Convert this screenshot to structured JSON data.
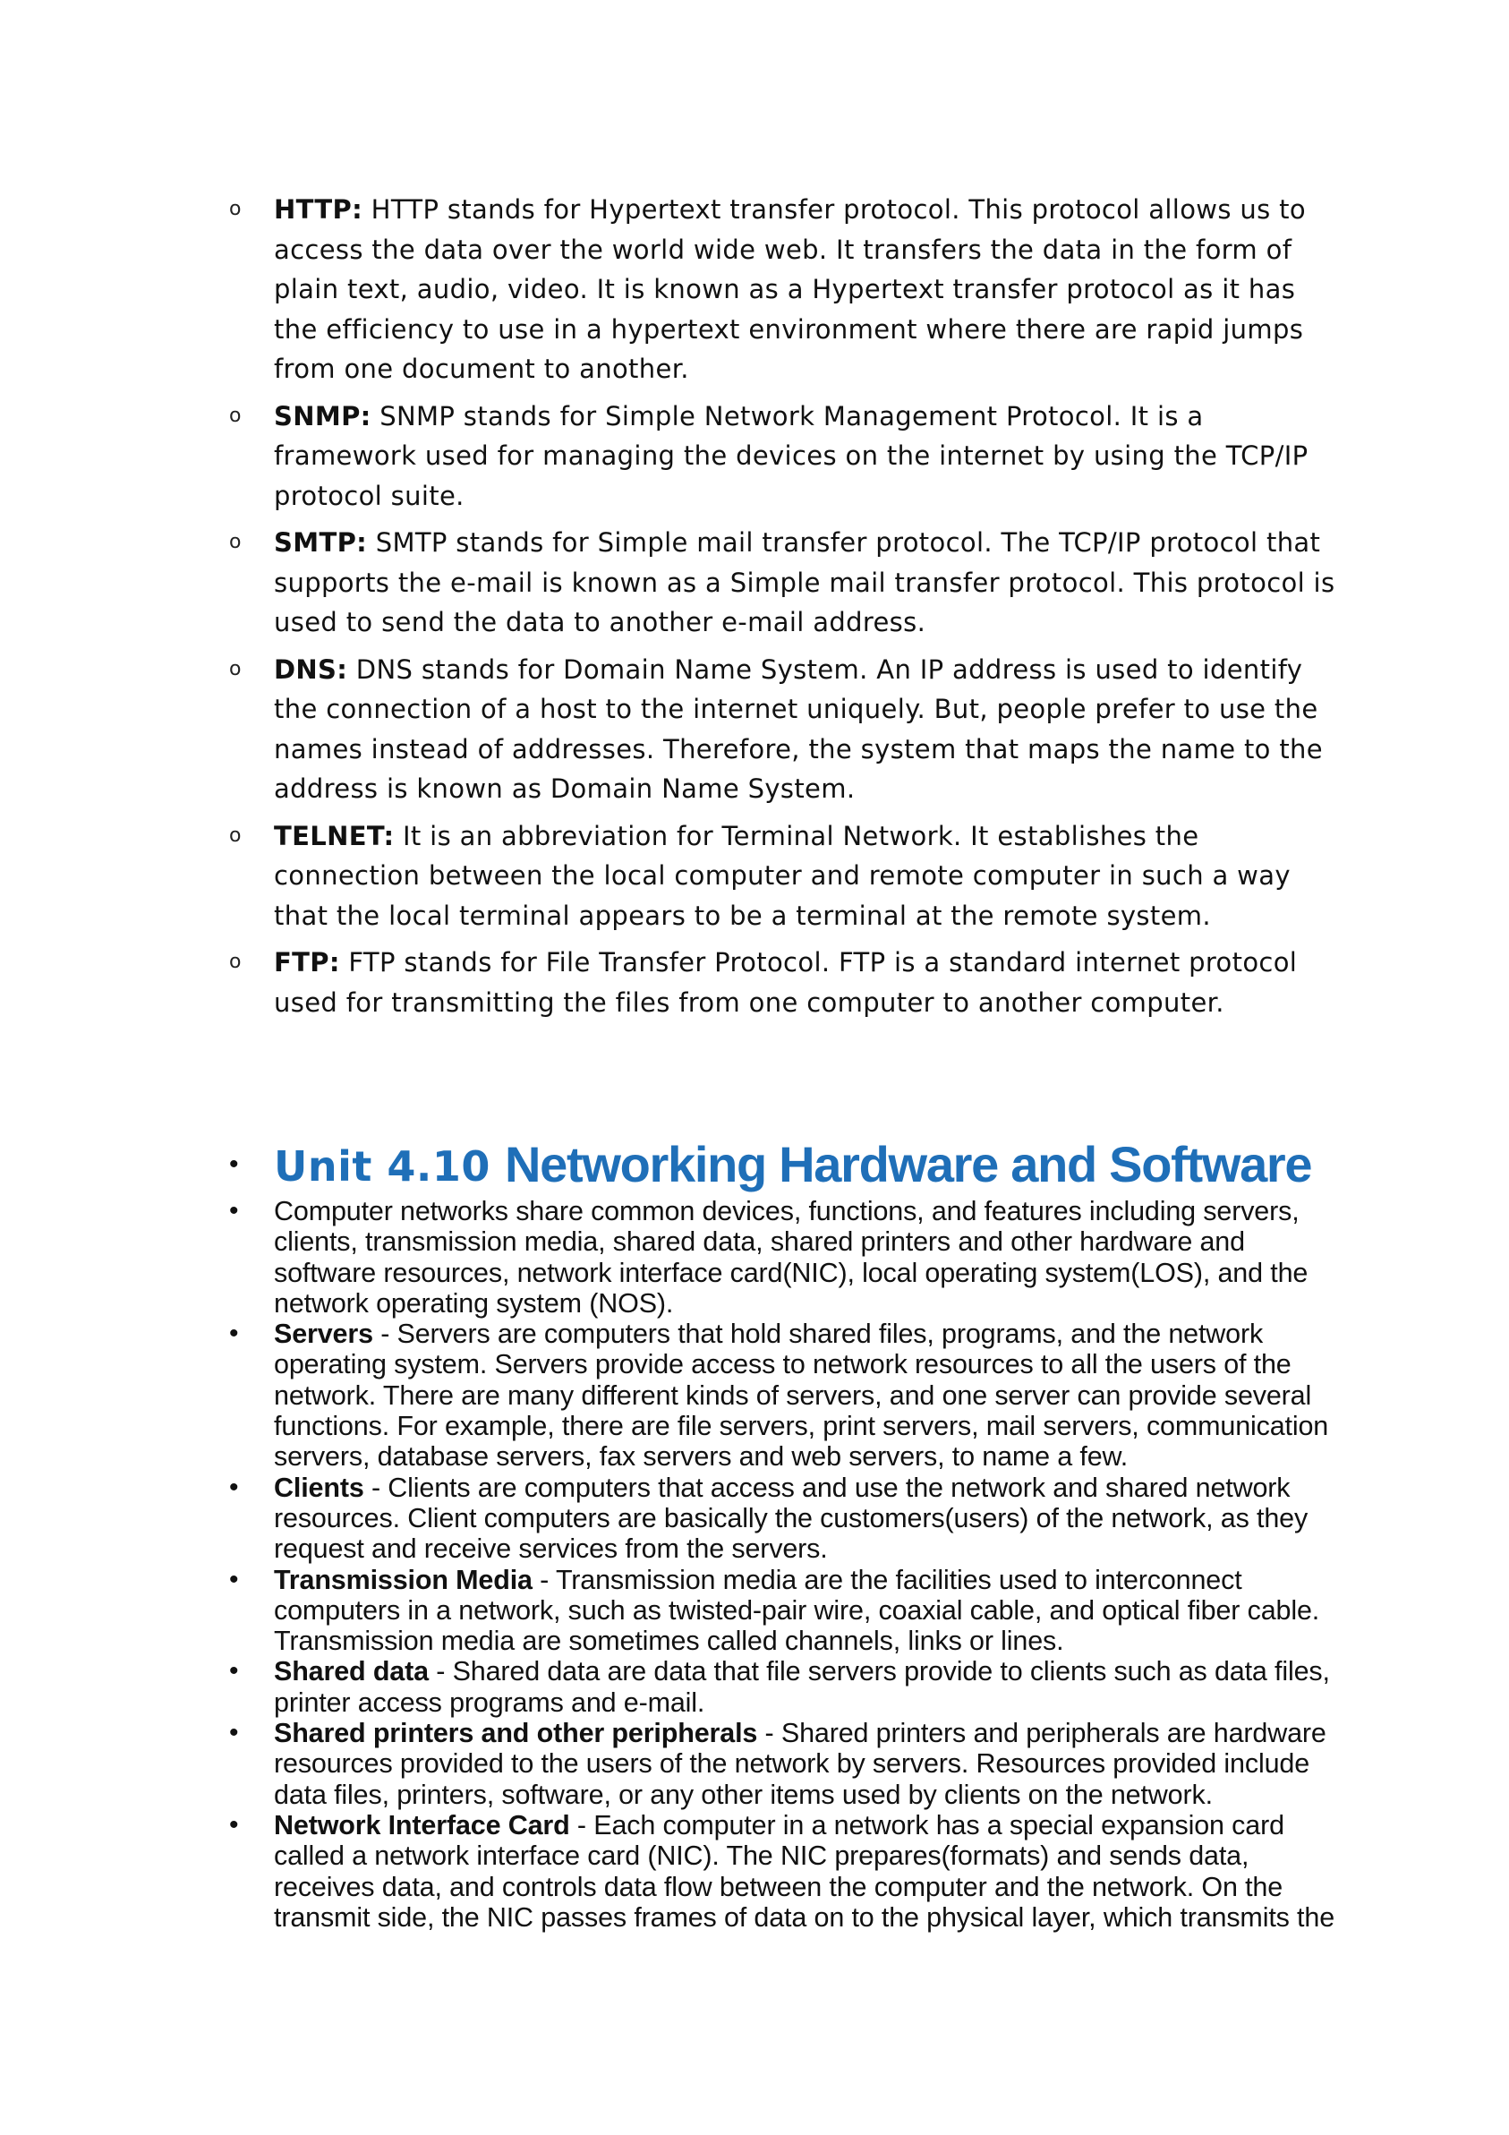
{
  "protocols": [
    {
      "bullet": "o",
      "term": "HTTP:",
      "text": " HTTP stands for Hypertext transfer protocol. This protocol allows us to access the data over the world wide web. It transfers the data in the form of plain text, audio, video. It is known as a Hypertext transfer protocol as it has the efficiency to use in a hypertext environment where there are rapid jumps from one document to another."
    },
    {
      "bullet": "o",
      "term": "SNMP:",
      "text": " SNMP stands for Simple Network Management Protocol. It is a framework used for managing the devices on the internet by using the TCP/IP protocol suite."
    },
    {
      "bullet": "o",
      "term": "SMTP:",
      "text": " SMTP stands for Simple mail transfer protocol. The TCP/IP protocol that supports the e-mail is known as a Simple mail transfer protocol. This protocol is used to send the data to another e-mail address."
    },
    {
      "bullet": "o",
      "term": "DNS:",
      "text": " DNS stands for Domain Name System. An IP address is used to identify the connection of a host to the internet uniquely. But, people prefer to use the names instead of addresses. Therefore, the system that maps the name to the address is known as Domain Name System."
    },
    {
      "bullet": "o",
      "term": "TELNET:",
      "text": " It is an abbreviation for Terminal Network. It establishes the connection between the local computer and remote computer in such a way that the local terminal appears to be a terminal at the remote system."
    },
    {
      "bullet": "o",
      "term": "FTP:",
      "text": " FTP stands for File Transfer Protocol. FTP is a standard internet protocol used for transmitting the files from one computer to another computer."
    }
  ],
  "unit_heading": {
    "bullet": "•",
    "unit_number": "Unit 4.10",
    "title": "Networking Hardware and Software"
  },
  "components": [
    {
      "bullet": "•",
      "term": "",
      "text": "Computer networks share common devices, functions, and features including servers, clients, transmission media, shared data, shared printers and other hardware and software resources, network interface card(NIC), local operating system(LOS), and the network operating system (NOS)."
    },
    {
      "bullet": "•",
      "term": "Servers",
      "text": " - Servers are computers that hold shared files, programs, and the network operating system. Servers provide access to network resources to all the users of the network. There are many different kinds of servers, and one server can provide several functions. For example, there are file servers, print servers, mail servers, communication servers, database servers, fax servers and web servers, to name a few."
    },
    {
      "bullet": "•",
      "term": "Clients",
      "text": " - Clients are computers that access and use the network and shared network resources. Client computers are basically the customers(users) of the network, as they request and receive services from the servers."
    },
    {
      "bullet": "•",
      "term": "Transmission Media",
      "text": " - Transmission media are the facilities used to interconnect computers in a network, such as twisted-pair wire, coaxial cable, and optical fiber cable. Transmission media are sometimes called channels, links or lines."
    },
    {
      "bullet": "•",
      "term": "Shared data",
      "text": " - Shared data are data that file servers provide to clients such as data files, printer access programs and e-mail."
    },
    {
      "bullet": "•",
      "term": "Shared printers and other peripherals",
      "text": " - Shared printers and peripherals are hardware resources provided to the users of the network by servers. Resources provided include data files, printers, software, or any other items used by clients on the network."
    },
    {
      "bullet": "•",
      "term": "Network Interface Card",
      "text": " - Each computer in a network has a special expansion card called a network interface card (NIC). The NIC prepares(formats) and sends data, receives data, and controls data flow between the computer and the network. On the transmit side, the NIC passes frames of data on to the physical layer, which transmits the"
    }
  ]
}
